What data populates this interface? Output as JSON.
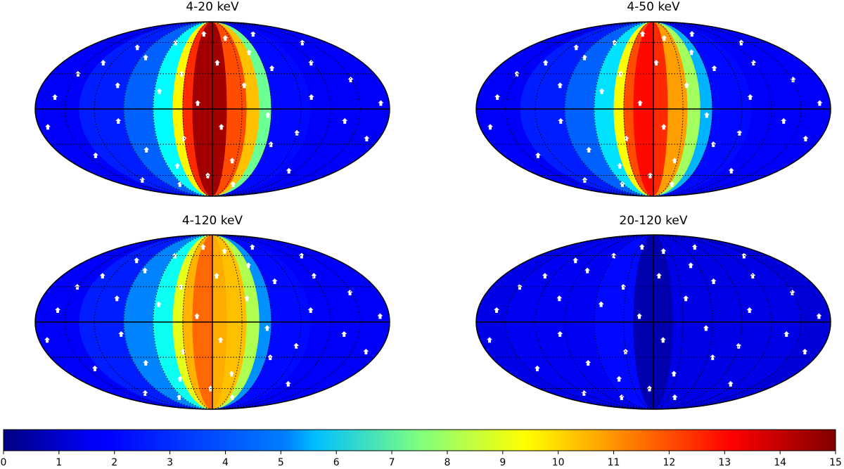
{
  "chart_data": {
    "type": "heatmap",
    "projection": "mollweide",
    "grid": true,
    "colormap": "jet",
    "colorbar": {
      "orientation": "horizontal",
      "position": "bottom",
      "range": [
        0,
        15
      ],
      "ticks": [
        0,
        1,
        2,
        3,
        4,
        5,
        6,
        7,
        8,
        9,
        10,
        11,
        12,
        13,
        14,
        15
      ],
      "tick_labels": [
        "0",
        "1",
        "2",
        "3",
        "4",
        "5",
        "6",
        "7",
        "8",
        "9",
        "10",
        "11",
        "12",
        "13",
        "14",
        "15"
      ]
    },
    "panels": [
      {
        "title": "4-20 keV",
        "position": "top-left",
        "bands": [
          {
            "lon": [
              -180,
              -135
            ],
            "value": 1.8
          },
          {
            "lon": [
              -135,
              -90
            ],
            "value": 2.3
          },
          {
            "lon": [
              -90,
              -60
            ],
            "value": 3.3
          },
          {
            "lon": [
              -60,
              -40
            ],
            "value": 5.6
          },
          {
            "lon": [
              -40,
              -30
            ],
            "value": 9.5
          },
          {
            "lon": [
              -30,
              -20
            ],
            "value": 12.5
          },
          {
            "lon": [
              -20,
              0
            ],
            "value": 14.5
          },
          {
            "lon": [
              0,
              15
            ],
            "value": 14.5
          },
          {
            "lon": [
              15,
              35
            ],
            "value": 12.0
          },
          {
            "lon": [
              35,
              48
            ],
            "value": 10.3
          },
          {
            "lon": [
              48,
              60
            ],
            "value": 7.2
          },
          {
            "lon": [
              60,
              100
            ],
            "value": 2.0
          },
          {
            "lon": [
              100,
              180
            ],
            "value": 1.8
          }
        ]
      },
      {
        "title": "4-50 keV",
        "position": "top-right",
        "bands": [
          {
            "lon": [
              -180,
              -135
            ],
            "value": 1.8
          },
          {
            "lon": [
              -135,
              -90
            ],
            "value": 2.3
          },
          {
            "lon": [
              -90,
              -60
            ],
            "value": 3.3
          },
          {
            "lon": [
              -60,
              -40
            ],
            "value": 5.2
          },
          {
            "lon": [
              -40,
              -30
            ],
            "value": 9.3
          },
          {
            "lon": [
              -30,
              -20
            ],
            "value": 12.0
          },
          {
            "lon": [
              -20,
              0
            ],
            "value": 13.0
          },
          {
            "lon": [
              0,
              15
            ],
            "value": 12.5
          },
          {
            "lon": [
              15,
              35
            ],
            "value": 10.8
          },
          {
            "lon": [
              35,
              48
            ],
            "value": 8.0
          },
          {
            "lon": [
              48,
              60
            ],
            "value": 4.5
          },
          {
            "lon": [
              60,
              100
            ],
            "value": 2.0
          },
          {
            "lon": [
              100,
              180
            ],
            "value": 1.8
          }
        ]
      },
      {
        "title": "4-120 keV",
        "position": "bottom-left",
        "bands": [
          {
            "lon": [
              -180,
              -135
            ],
            "value": 1.8
          },
          {
            "lon": [
              -135,
              -90
            ],
            "value": 2.3
          },
          {
            "lon": [
              -90,
              -60
            ],
            "value": 3.8
          },
          {
            "lon": [
              -60,
              -40
            ],
            "value": 5.8
          },
          {
            "lon": [
              -40,
              -30
            ],
            "value": 9.0
          },
          {
            "lon": [
              -30,
              -20
            ],
            "value": 10.5
          },
          {
            "lon": [
              -20,
              0
            ],
            "value": 11.6
          },
          {
            "lon": [
              0,
              15
            ],
            "value": 10.6
          },
          {
            "lon": [
              15,
              35
            ],
            "value": 10.3
          },
          {
            "lon": [
              35,
              48
            ],
            "value": 8.2
          },
          {
            "lon": [
              48,
              60
            ],
            "value": 4.0
          },
          {
            "lon": [
              60,
              100
            ],
            "value": 2.0
          },
          {
            "lon": [
              100,
              180
            ],
            "value": 1.8
          }
        ]
      },
      {
        "title": "20-120 keV",
        "position": "bottom-right",
        "bands": [
          {
            "lon": [
              -180,
              -150
            ],
            "value": 1.5
          },
          {
            "lon": [
              -150,
              -60
            ],
            "value": 1.7
          },
          {
            "lon": [
              -60,
              -20
            ],
            "value": 2.0
          },
          {
            "lon": [
              -20,
              20
            ],
            "value": 0.7
          },
          {
            "lon": [
              20,
              150
            ],
            "value": 1.5
          },
          {
            "lon": [
              150,
              180
            ],
            "value": 1.3
          }
        ]
      }
    ],
    "masked_point_color": "#ffffff",
    "masked_points": [
      [
        -160,
        10
      ],
      [
        -150,
        30
      ],
      [
        -130,
        40
      ],
      [
        -110,
        55
      ],
      [
        -100,
        20
      ],
      [
        -95,
        -10
      ],
      [
        -85,
        45
      ],
      [
        -75,
        -35
      ],
      [
        -60,
        60
      ],
      [
        -55,
        15
      ],
      [
        -45,
        -50
      ],
      [
        -35,
        30
      ],
      [
        -30,
        -25
      ],
      [
        -20,
        70
      ],
      [
        -15,
        5
      ],
      [
        -5,
        -60
      ],
      [
        5,
        40
      ],
      [
        10,
        -15
      ],
      [
        20,
        65
      ],
      [
        25,
        -45
      ],
      [
        35,
        20
      ],
      [
        40,
        -70
      ],
      [
        50,
        50
      ],
      [
        55,
        -5
      ],
      [
        65,
        -30
      ],
      [
        70,
        35
      ],
      [
        80,
        70
      ],
      [
        90,
        -20
      ],
      [
        100,
        10
      ],
      [
        110,
        -55
      ],
      [
        120,
        40
      ],
      [
        135,
        -10
      ],
      [
        150,
        25
      ],
      [
        165,
        -25
      ],
      [
        -140,
        -40
      ],
      [
        -120,
        -65
      ],
      [
        140,
        60
      ],
      [
        -170,
        -15
      ],
      [
        170,
        5
      ],
      [
        -65,
        -70
      ]
    ]
  }
}
